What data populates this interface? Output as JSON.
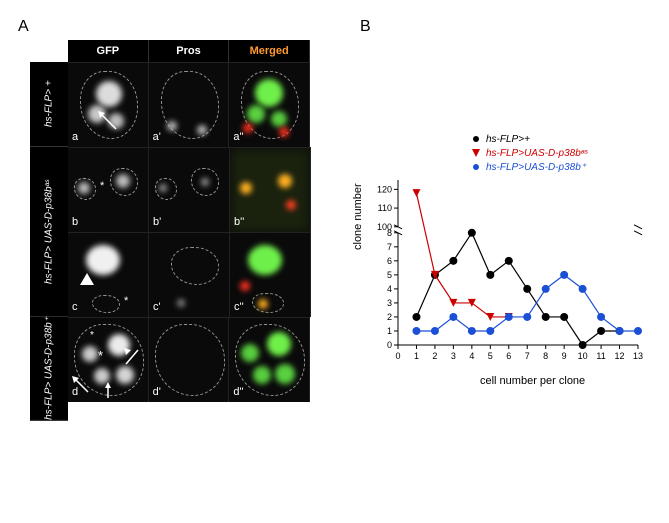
{
  "panelLabels": {
    "A": "A",
    "B": "B"
  },
  "panelA": {
    "cols": {
      "gfp": "GFP",
      "pros": "Pros",
      "merged": "Merged"
    },
    "rows": {
      "r1": "hs-FLP> +",
      "r2": "hs-FLP> UAS-D-p38bᵃˢ",
      "r3": "hs-FLP> UAS-D-p38b⁺"
    },
    "subletters": {
      "a": "a",
      "a1": "a'",
      "a2": "a''",
      "b": "b",
      "b1": "b'",
      "b2": "b''",
      "c": "c",
      "c1": "c'",
      "c2": "c''",
      "d": "d",
      "d1": "d'",
      "d2": "d''"
    }
  },
  "chart": {
    "type": "line-scatter",
    "xlabel": "cell number per clone",
    "ylabel": "clone number",
    "xlim": [
      0,
      13
    ],
    "ylim_lower": [
      0,
      8
    ],
    "ylim_upper": [
      100,
      125
    ],
    "xticks": [
      0,
      1,
      2,
      3,
      4,
      5,
      6,
      7,
      8,
      9,
      10,
      11,
      12,
      13
    ],
    "yticks_lower": [
      0,
      1,
      2,
      3,
      4,
      5,
      6,
      7,
      8
    ],
    "yticks_upper": [
      100,
      110,
      120
    ],
    "break_at": 8,
    "series": [
      {
        "name": "hs-FLP>+",
        "color": "#000000",
        "marker": "circle",
        "points": [
          [
            1,
            2
          ],
          [
            2,
            5
          ],
          [
            3,
            6
          ],
          [
            4,
            8
          ],
          [
            5,
            5
          ],
          [
            6,
            6
          ],
          [
            7,
            4
          ],
          [
            8,
            2
          ],
          [
            9,
            2
          ],
          [
            10,
            0
          ],
          [
            11,
            1
          ],
          [
            12,
            1
          ]
        ]
      },
      {
        "name": "hs-FLP>UAS-D-p38bᵃˢ",
        "color": "#cc0000",
        "marker": "triangle-down",
        "points": [
          [
            1,
            118
          ],
          [
            2,
            5
          ],
          [
            3,
            3
          ],
          [
            4,
            3
          ],
          [
            5,
            2
          ],
          [
            6,
            2
          ]
        ]
      },
      {
        "name": "hs-FLP>UAS-D-p38b⁺",
        "color": "#1a4fd6",
        "marker": "circle",
        "points": [
          [
            1,
            1
          ],
          [
            2,
            1
          ],
          [
            3,
            2
          ],
          [
            4,
            1
          ],
          [
            5,
            1
          ],
          [
            6,
            2
          ],
          [
            7,
            2
          ],
          [
            8,
            4
          ],
          [
            9,
            5
          ],
          [
            10,
            4
          ],
          [
            11,
            2
          ],
          [
            12,
            1
          ],
          [
            13,
            1
          ]
        ]
      }
    ],
    "axis_color": "#000000",
    "font_size": 11,
    "line_width": 1.2,
    "marker_size": 4,
    "background": "#ffffff"
  },
  "colors": {
    "green": "#7fff5f",
    "red": "#ff3020",
    "orange": "#ff9933",
    "panel_black": "#000000",
    "dash": "#dddddd"
  }
}
